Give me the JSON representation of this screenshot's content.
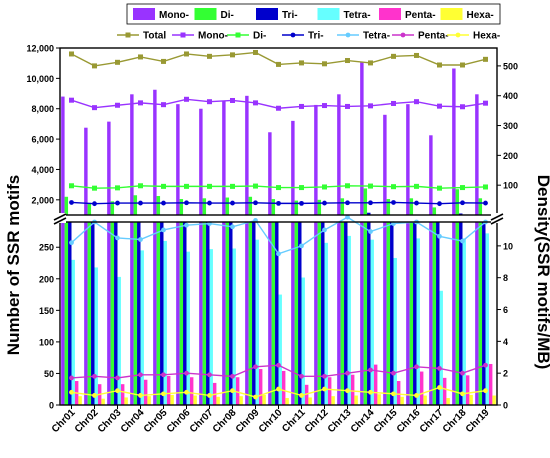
{
  "chart_data": {
    "type": "bar",
    "categories": [
      "Chr01",
      "Chr02",
      "Chr03",
      "Chr04",
      "Chr05",
      "Chr06",
      "Chr07",
      "Chr08",
      "Chr09",
      "Chr10",
      "Chr11",
      "Chr12",
      "Chr13",
      "Chr14",
      "Chr15",
      "Chr16",
      "Chr17",
      "Chr18",
      "Chr19"
    ],
    "ylabel_left": "Number of SSR motifs",
    "ylabel_right": "Density(SSR motifs/MB)",
    "left_axis_broken": true,
    "ylim_lower": [
      0,
      290
    ],
    "ylim_upper": [
      1000,
      12000
    ],
    "ylim_right_lower": [
      0,
      11.5
    ],
    "ylim_right_upper": [
      0,
      560
    ],
    "yticks_lower": [
      0,
      50,
      100,
      150,
      200,
      250
    ],
    "yticks_upper": [
      2000,
      4000,
      6000,
      8000,
      10000,
      12000
    ],
    "yticks_right_lower": [
      0,
      2,
      4,
      6,
      8,
      10
    ],
    "yticks_right_upper": [
      100,
      200,
      300,
      400,
      500
    ],
    "bar_series": [
      {
        "name": "Mono-",
        "color": "#9933ff",
        "values": [
          8800,
          6750,
          7150,
          8950,
          9250,
          8300,
          8000,
          8500,
          8850,
          6450,
          7200,
          8250,
          8950,
          11050,
          7600,
          8300,
          6250,
          10650,
          8950
        ]
      },
      {
        "name": "Di-",
        "color": "#33ff33",
        "values": [
          2200,
          1800,
          1900,
          2300,
          2250,
          2050,
          2100,
          2150,
          2200,
          2050,
          1950,
          2000,
          2100,
          2750,
          2050,
          2100,
          1500,
          2700,
          2100
        ]
      },
      {
        "name": "Tri-",
        "color": "#0000cc",
        "values": [
          900,
          650,
          700,
          880,
          900,
          850,
          820,
          850,
          870,
          700,
          720,
          800,
          880,
          1150,
          950,
          850,
          650,
          1100,
          900
        ]
      },
      {
        "name": "Tetra-",
        "color": "#66ffff",
        "values": [
          230,
          218,
          203,
          245,
          260,
          243,
          247,
          248,
          262,
          175,
          202,
          257,
          268,
          262,
          233,
          264,
          181,
          264,
          272
        ]
      },
      {
        "name": "Penta-",
        "color": "#ff33cc",
        "values": [
          38,
          33,
          33,
          40,
          46,
          44,
          35,
          44,
          57,
          54,
          32,
          44,
          48,
          64,
          38,
          53,
          43,
          47,
          65
        ]
      },
      {
        "name": "Hexa-",
        "color": "#ffff33",
        "values": [
          14,
          10,
          12,
          14,
          16,
          15,
          13,
          14,
          16,
          11,
          12,
          14,
          15,
          17,
          13,
          15,
          11,
          16,
          15
        ]
      }
    ],
    "line_series": [
      {
        "name": "Total",
        "color": "#999933",
        "marker": "square",
        "values": [
          540,
          500,
          512,
          530,
          515,
          540,
          532,
          537,
          545,
          505,
          510,
          507,
          518,
          510,
          532,
          535,
          503,
          503,
          522
        ]
      },
      {
        "name": "Mono-",
        "color": "#9933ff",
        "marker": "square",
        "values": [
          385,
          360,
          368,
          376,
          370,
          388,
          380,
          384,
          376,
          358,
          364,
          367,
          364,
          366,
          374,
          380,
          365,
          363,
          375
        ]
      },
      {
        "name": "Di-",
        "color": "#33ff33",
        "marker": "square",
        "values": [
          98,
          90,
          91,
          98,
          96,
          96,
          96,
          96,
          97,
          92,
          92,
          94,
          98,
          97,
          95,
          96,
          90,
          92,
          94
        ]
      },
      {
        "name": "Tri-",
        "color": "#0000cc",
        "marker": "circle",
        "values": [
          42,
          38,
          40,
          40,
          40,
          41,
          40,
          40,
          41,
          39,
          39,
          40,
          41,
          41,
          42,
          40,
          38,
          41,
          40
        ]
      },
      {
        "name": "Tetra-",
        "color": "#66ccff",
        "marker": "circle",
        "values": [
          10.2,
          11.5,
          10.5,
          10.4,
          11.0,
          11.3,
          11.4,
          11.2,
          11.6,
          9.5,
          10.0,
          11.0,
          11.8,
          10.9,
          11.4,
          11.5,
          10.6,
          10.3,
          11.5
        ]
      },
      {
        "name": "Penta-",
        "color": "#cc33cc",
        "marker": "circle",
        "values": [
          1.7,
          1.8,
          1.7,
          1.9,
          1.9,
          2.0,
          1.9,
          1.8,
          2.4,
          2.5,
          1.8,
          1.8,
          2.0,
          2.2,
          2.0,
          2.4,
          2.3,
          2.0,
          2.5
        ]
      },
      {
        "name": "Hexa-",
        "color": "#ffff33",
        "marker": "circle",
        "values": [
          0.8,
          0.6,
          0.9,
          0.6,
          0.7,
          0.8,
          0.6,
          0.9,
          0.5,
          1.0,
          0.6,
          1.0,
          0.9,
          0.8,
          0.7,
          0.6,
          1.1,
          0.7,
          0.9
        ]
      }
    ]
  }
}
